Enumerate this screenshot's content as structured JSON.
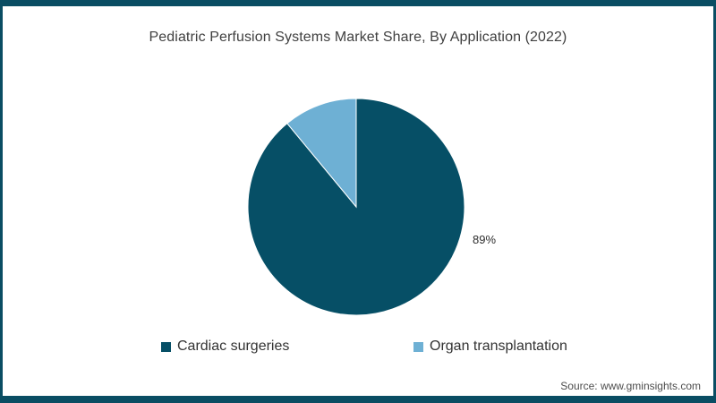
{
  "frame": {
    "accent_color": "#0a4d63"
  },
  "title": "Pediatric Perfusion Systems Market Share, By Application (2022)",
  "source_note": "Source: www.gminsights.com",
  "chart_data": {
    "type": "pie",
    "title": "Pediatric Perfusion Systems Market Share, By Application (2022)",
    "year": "2022",
    "unit": "percent market share",
    "start_angle_deg": 0,
    "direction": "clockwise",
    "legend_position": "bottom",
    "slices": [
      {
        "label": "Cardiac surgeries",
        "value": 89,
        "color": "#064f66",
        "data_label": "89%"
      },
      {
        "label": "Organ transplantation",
        "value": 11,
        "color": "#6eb0d4",
        "data_label": ""
      }
    ]
  }
}
